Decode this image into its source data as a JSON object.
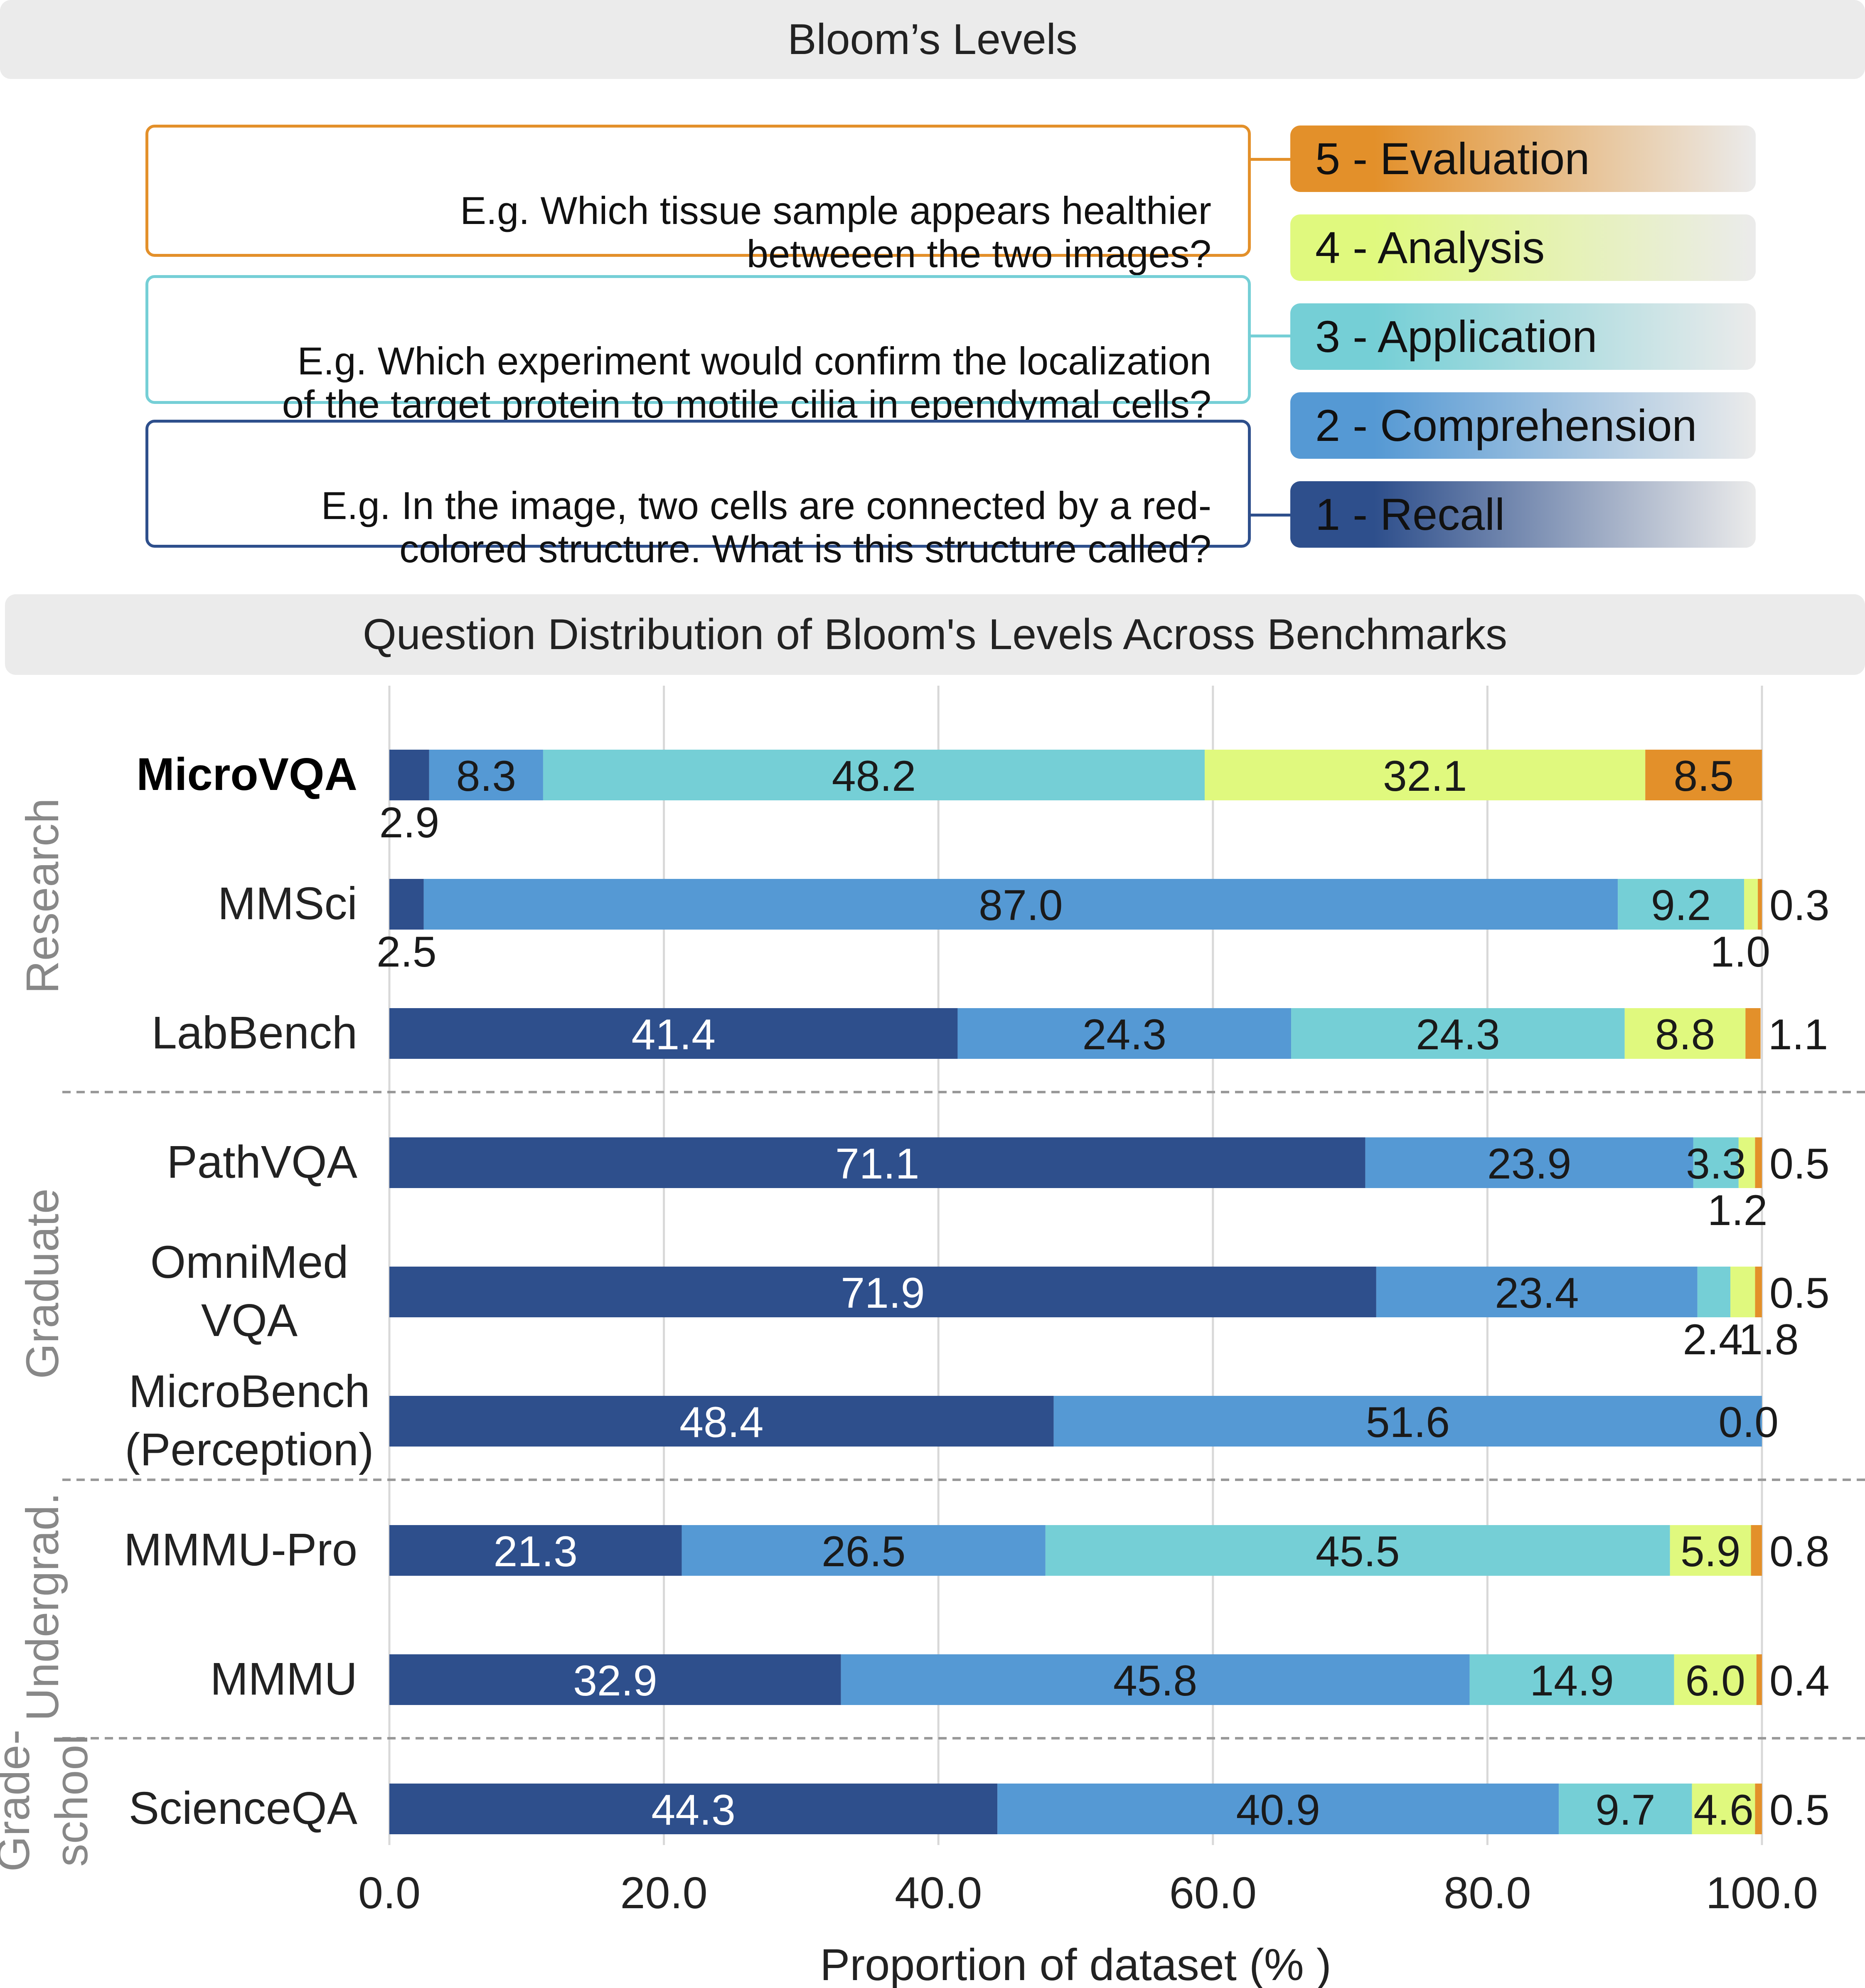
{
  "header": {
    "title": "Bloom’s Levels",
    "chart_title": "Question Distribution of Bloom's Levels Across Benchmarks"
  },
  "examples": [
    {
      "text": "E.g. Which tissue sample appears healthier\nbetweeen the two images?",
      "color": "#E3902A"
    },
    {
      "text": "E.g. Which experiment would confirm the localization\nof the target protein to motile cilia in ependymal cells?",
      "color": "#75CFD6"
    },
    {
      "text": "E.g. In the image, two cells are connected by a red-\ncolored structure. What is this structure called?",
      "color": "#2E4F8C"
    }
  ],
  "levels": [
    {
      "label": "5 - Evaluation",
      "color": "#E3902A"
    },
    {
      "label": "4 - Analysis",
      "color": "#E0F97E"
    },
    {
      "label": "3 - Application",
      "color": "#75CFD6"
    },
    {
      "label": "2 - Comprehension",
      "color": "#5599D4"
    },
    {
      "label": "1 - Recall",
      "color": "#2E4F8C"
    }
  ],
  "chart_data": {
    "type": "bar",
    "orientation": "horizontal",
    "stacked": true,
    "xlabel": "Proportion of dataset (% )",
    "xlim": [
      0,
      100
    ],
    "xticks": [
      "0.0",
      "20.0",
      "40.0",
      "60.0",
      "80.0",
      "100.0"
    ],
    "grid": true,
    "groups": [
      {
        "name": "Research",
        "categories": [
          "MicroVQA",
          "MMSci",
          "LabBench"
        ]
      },
      {
        "name": "Graduate",
        "categories": [
          "PathVQA",
          "OmniMed VQA",
          "MicroBench (Perception)"
        ]
      },
      {
        "name": "Undergrad.",
        "categories": [
          "MMMU-Pro",
          "MMMU"
        ]
      },
      {
        "name": "Grade-school",
        "categories": [
          "ScienceQA"
        ]
      }
    ],
    "categories": [
      "MicroVQA",
      "MMSci",
      "LabBench",
      "PathVQA",
      "OmniMed VQA",
      "MicroBench (Perception)",
      "MMMU-Pro",
      "MMMU",
      "ScienceQA"
    ],
    "category_labels": [
      [
        "MicroVQA"
      ],
      [
        "MMSci"
      ],
      [
        "LabBench"
      ],
      [
        "PathVQA"
      ],
      [
        "OmniMed",
        "VQA"
      ],
      [
        "MicroBench",
        "(Perception)"
      ],
      [
        "MMMU-Pro"
      ],
      [
        "MMMU"
      ],
      [
        "ScienceQA"
      ]
    ],
    "series": [
      {
        "name": "1 - Recall",
        "color": "#2E4F8C",
        "values": [
          2.9,
          2.5,
          41.4,
          71.1,
          71.9,
          48.4,
          21.3,
          32.9,
          44.3
        ]
      },
      {
        "name": "2 - Comprehension",
        "color": "#5599D4",
        "values": [
          8.3,
          87.0,
          24.3,
          23.9,
          23.4,
          51.6,
          26.5,
          45.8,
          40.9
        ]
      },
      {
        "name": "3 - Application",
        "color": "#75CFD6",
        "values": [
          48.2,
          9.2,
          24.3,
          3.3,
          2.4,
          0.0,
          45.5,
          14.9,
          9.7
        ]
      },
      {
        "name": "4 - Analysis",
        "color": "#E0F97E",
        "values": [
          32.1,
          1.0,
          8.8,
          1.2,
          1.8,
          0.0,
          5.9,
          6.0,
          4.6
        ]
      },
      {
        "name": "5 - Evaluation",
        "color": "#E3902A",
        "values": [
          8.5,
          0.3,
          1.1,
          0.5,
          0.5,
          0.0,
          0.8,
          0.4,
          0.5
        ]
      }
    ],
    "data_labels": [
      [
        "2.9",
        "8.3",
        "48.2",
        "32.1",
        "8.5"
      ],
      [
        "2.5",
        "87.0",
        "9.2",
        "1.0",
        "0.3"
      ],
      [
        "41.4",
        "24.3",
        "24.3",
        "8.8",
        "1.1"
      ],
      [
        "71.1",
        "23.9",
        "3.3",
        "1.2",
        "0.5"
      ],
      [
        "71.9",
        "23.4",
        "2.4",
        "1.8",
        "0.5"
      ],
      [
        "48.4",
        "51.6",
        "",
        "",
        "0.0"
      ],
      [
        "21.3",
        "26.5",
        "45.5",
        "5.9",
        "0.8"
      ],
      [
        "32.9",
        "45.8",
        "14.9",
        "6.0",
        "0.4"
      ],
      [
        "44.3",
        "40.9",
        "9.7",
        "4.6",
        "0.5"
      ]
    ],
    "label_placement": [
      [
        "below",
        "in",
        "in",
        "in",
        "in"
      ],
      [
        "below",
        "in",
        "in",
        "below",
        "right"
      ],
      [
        "in",
        "in",
        "in",
        "in",
        "right"
      ],
      [
        "in",
        "in",
        "in",
        "below",
        "right"
      ],
      [
        "in",
        "in",
        "below",
        "below2",
        "right"
      ],
      [
        "in",
        "in",
        "",
        "",
        "in-end"
      ],
      [
        "in",
        "in",
        "in",
        "in",
        "right"
      ],
      [
        "in",
        "in",
        "in",
        "in",
        "right"
      ],
      [
        "in",
        "in",
        "in",
        "in",
        "right"
      ]
    ]
  }
}
